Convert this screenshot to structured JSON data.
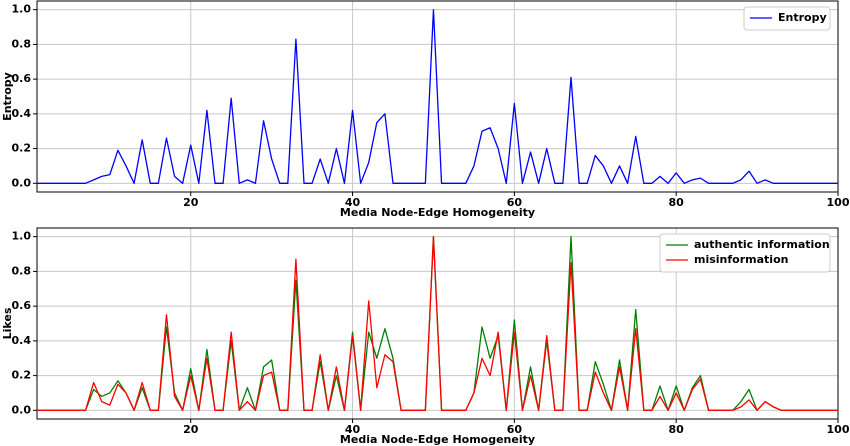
{
  "chart_data": [
    {
      "type": "line",
      "ylabel": "Entropy",
      "xlabel": "Media Node-Edge Homogeneity",
      "x": [
        1,
        2,
        3,
        4,
        5,
        6,
        7,
        8,
        9,
        10,
        11,
        12,
        13,
        14,
        15,
        16,
        17,
        18,
        19,
        20,
        21,
        22,
        23,
        24,
        25,
        26,
        27,
        28,
        29,
        30,
        31,
        32,
        33,
        34,
        35,
        36,
        37,
        38,
        39,
        40,
        41,
        42,
        43,
        44,
        45,
        46,
        47,
        48,
        49,
        50,
        51,
        52,
        53,
        54,
        55,
        56,
        57,
        58,
        59,
        60,
        61,
        62,
        63,
        64,
        65,
        66,
        67,
        68,
        69,
        70,
        71,
        72,
        73,
        74,
        75,
        76,
        77,
        78,
        79,
        80,
        81,
        82,
        83,
        84,
        85,
        86,
        87,
        88,
        89,
        90,
        91,
        92,
        93,
        94,
        95,
        96,
        97,
        98,
        99,
        100
      ],
      "series": [
        {
          "name": "Entropy",
          "color": "#0000ff",
          "values": [
            0,
            0,
            0,
            0,
            0,
            0,
            0,
            0.02,
            0.04,
            0.05,
            0.19,
            0.1,
            0,
            0.25,
            0,
            0,
            0.26,
            0.04,
            0,
            0.22,
            0,
            0.42,
            0,
            0,
            0.49,
            0,
            0.02,
            0,
            0.36,
            0.14,
            0,
            0,
            0.83,
            0,
            0,
            0.14,
            0,
            0.2,
            0,
            0.42,
            0,
            0.12,
            0.35,
            0.4,
            0,
            0,
            0,
            0,
            0,
            1.0,
            0,
            0,
            0,
            0,
            0.1,
            0.3,
            0.32,
            0.2,
            0,
            0.46,
            0,
            0.18,
            0,
            0.2,
            0,
            0,
            0.61,
            0,
            0,
            0.16,
            0.1,
            0,
            0.1,
            0,
            0.27,
            0,
            0,
            0.04,
            0,
            0.06,
            0,
            0.02,
            0.03,
            0,
            0,
            0,
            0,
            0.02,
            0.07,
            0,
            0.02,
            0,
            0,
            0,
            0,
            0,
            0,
            0,
            0,
            0
          ]
        }
      ],
      "xlim": [
        1,
        100
      ],
      "xticks": [
        20,
        40,
        60,
        80,
        100
      ],
      "ylim": [
        -0.05,
        1.05
      ],
      "yticks": [
        {
          "value": 0,
          "label": "0.0"
        },
        0.2,
        0.4,
        0.6,
        0.8,
        {
          "value": 1,
          "label": "1.0"
        }
      ],
      "grid": true,
      "legend": "upper right"
    },
    {
      "type": "line",
      "ylabel": "Likes",
      "xlabel": "Media Node-Edge Homogeneity",
      "x": [
        1,
        2,
        3,
        4,
        5,
        6,
        7,
        8,
        9,
        10,
        11,
        12,
        13,
        14,
        15,
        16,
        17,
        18,
        19,
        20,
        21,
        22,
        23,
        24,
        25,
        26,
        27,
        28,
        29,
        30,
        31,
        32,
        33,
        34,
        35,
        36,
        37,
        38,
        39,
        40,
        41,
        42,
        43,
        44,
        45,
        46,
        47,
        48,
        49,
        50,
        51,
        52,
        53,
        54,
        55,
        56,
        57,
        58,
        59,
        60,
        61,
        62,
        63,
        64,
        65,
        66,
        67,
        68,
        69,
        70,
        71,
        72,
        73,
        74,
        75,
        76,
        77,
        78,
        79,
        80,
        81,
        82,
        83,
        84,
        85,
        86,
        87,
        88,
        89,
        90,
        91,
        92,
        93,
        94,
        95,
        96,
        97,
        98,
        99,
        100
      ],
      "series": [
        {
          "name": "authentic information",
          "color": "#008000",
          "values": [
            0,
            0,
            0,
            0,
            0,
            0,
            0,
            0.12,
            0.08,
            0.1,
            0.17,
            0.1,
            0,
            0.13,
            0,
            0,
            0.48,
            0.1,
            0,
            0.24,
            0,
            0.35,
            0,
            0,
            0.4,
            0,
            0.13,
            0,
            0.25,
            0.29,
            0,
            0,
            0.75,
            0,
            0,
            0.28,
            0,
            0.2,
            0,
            0.45,
            0,
            0.45,
            0.3,
            0.47,
            0.3,
            0,
            0,
            0,
            0,
            1.0,
            0,
            0,
            0,
            0,
            0.1,
            0.48,
            0.3,
            0.43,
            0,
            0.52,
            0,
            0.25,
            0,
            0.4,
            0,
            0,
            1.0,
            0,
            0,
            0.28,
            0.15,
            0,
            0.29,
            0,
            0.58,
            0,
            0,
            0.14,
            0,
            0.14,
            0,
            0.13,
            0.2,
            0,
            0,
            0,
            0,
            0.05,
            0.12,
            0,
            0.05,
            0.02,
            0,
            0,
            0,
            0,
            0,
            0,
            0,
            0
          ]
        },
        {
          "name": "misinformation",
          "color": "#ff0000",
          "values": [
            0,
            0,
            0,
            0,
            0,
            0,
            0,
            0.16,
            0.05,
            0.03,
            0.15,
            0.1,
            0,
            0.16,
            0,
            0,
            0.55,
            0.08,
            0,
            0.2,
            0,
            0.3,
            0,
            0,
            0.45,
            0,
            0.05,
            0,
            0.2,
            0.22,
            0,
            0,
            0.87,
            0,
            0,
            0.32,
            0,
            0.25,
            0,
            0.43,
            0,
            0.63,
            0.13,
            0.32,
            0.28,
            0,
            0,
            0,
            0,
            1.0,
            0,
            0,
            0,
            0,
            0.1,
            0.3,
            0.2,
            0.45,
            0,
            0.45,
            0,
            0.2,
            0,
            0.43,
            0,
            0,
            0.85,
            0,
            0,
            0.22,
            0.1,
            0,
            0.25,
            0,
            0.47,
            0,
            0,
            0.08,
            0,
            0.1,
            0,
            0.12,
            0.18,
            0,
            0,
            0,
            0,
            0.02,
            0.06,
            0,
            0.05,
            0.02,
            0,
            0,
            0,
            0,
            0,
            0,
            0,
            0
          ]
        }
      ],
      "xlim": [
        1,
        100
      ],
      "xticks": [
        20,
        40,
        60,
        80,
        100
      ],
      "ylim": [
        -0.05,
        1.05
      ],
      "yticks": [
        {
          "value": 0,
          "label": "0.0"
        },
        0.2,
        0.4,
        0.6,
        0.8,
        {
          "value": 1,
          "label": "1.0"
        }
      ],
      "grid": true,
      "legend": "upper right"
    }
  ]
}
